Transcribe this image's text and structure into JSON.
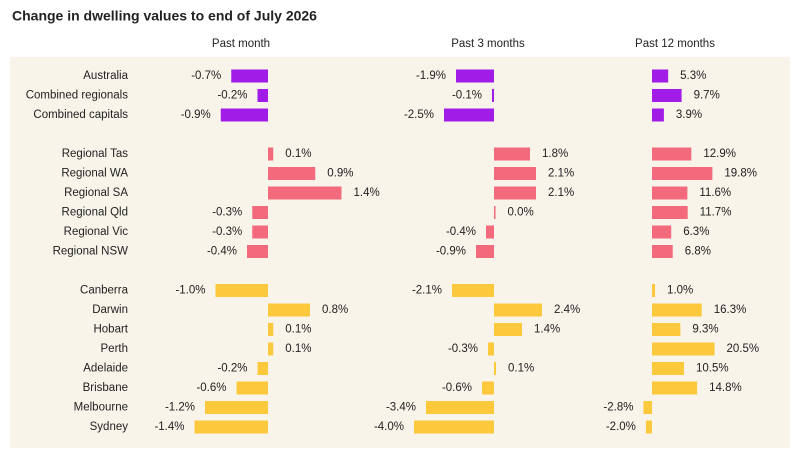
{
  "chart_data": {
    "type": "bar",
    "orientation": "horizontal",
    "title": "Change in dwelling values to end of July 2026",
    "categories": [
      "Australia",
      "Combined regionals",
      "Combined capitals",
      null,
      "Regional Tas",
      "Regional WA",
      "Regional SA",
      "Regional Qld",
      "Regional Vic",
      "Regional NSW",
      null,
      "Canberra",
      "Darwin",
      "Hobart",
      "Perth",
      "Adelaide",
      "Brisbane",
      "Melbourne",
      "Sydney"
    ],
    "colors": [
      "#a21ce8",
      "#a21ce8",
      "#a21ce8",
      null,
      "#f26a7c",
      "#f26a7c",
      "#f26a7c",
      "#f26a7c",
      "#f26a7c",
      "#f26a7c",
      null,
      "#fcc93c",
      "#fcc93c",
      "#fcc93c",
      "#fcc93c",
      "#fcc93c",
      "#fcc93c",
      "#fcc93c",
      "#fcc93c"
    ],
    "series": [
      {
        "name": "Past month",
        "values": [
          -0.7,
          -0.2,
          -0.9,
          null,
          0.1,
          0.9,
          1.4,
          -0.3,
          -0.3,
          -0.4,
          null,
          -1.0,
          0.8,
          0.1,
          0.1,
          -0.2,
          -0.6,
          -1.2,
          -1.4
        ],
        "value_labels": [
          "-0.7%",
          "-0.2%",
          "-0.9%",
          null,
          "0.1%",
          "0.9%",
          "1.4%",
          "-0.3%",
          "-0.3%",
          "-0.4%",
          null,
          "-1.0%",
          "0.8%",
          "0.1%",
          "0.1%",
          "-0.2%",
          "-0.6%",
          "-1.2%",
          "-1.4%"
        ]
      },
      {
        "name": "Past 3 months",
        "values": [
          -1.9,
          -0.1,
          -2.5,
          null,
          1.8,
          2.1,
          2.1,
          0.0,
          -0.4,
          -0.9,
          null,
          -2.1,
          2.4,
          1.4,
          -0.3,
          0.1,
          -0.6,
          -3.4,
          -4.0
        ],
        "value_labels": [
          "-1.9%",
          "-0.1%",
          "-2.5%",
          null,
          "1.8%",
          "2.1%",
          "2.1%",
          "0.0%",
          "-0.4%",
          "-0.9%",
          null,
          "-2.1%",
          "2.4%",
          "1.4%",
          "-0.3%",
          "0.1%",
          "-0.6%",
          "-3.4%",
          "-4.0%"
        ]
      },
      {
        "name": "Past 12 months",
        "values": [
          5.3,
          9.7,
          3.9,
          null,
          12.9,
          19.8,
          11.6,
          11.7,
          6.3,
          6.8,
          null,
          1.0,
          16.3,
          9.3,
          20.5,
          10.5,
          14.8,
          -2.8,
          -2.0
        ],
        "value_labels": [
          "5.3%",
          "9.7%",
          "3.9%",
          null,
          "12.9%",
          "19.8%",
          "11.6%",
          "11.7%",
          "6.3%",
          "6.8%",
          null,
          "1.0%",
          "16.3%",
          "9.3%",
          "20.5%",
          "10.5%",
          "14.8%",
          "-2.8%",
          "-2.0%"
        ]
      }
    ]
  }
}
